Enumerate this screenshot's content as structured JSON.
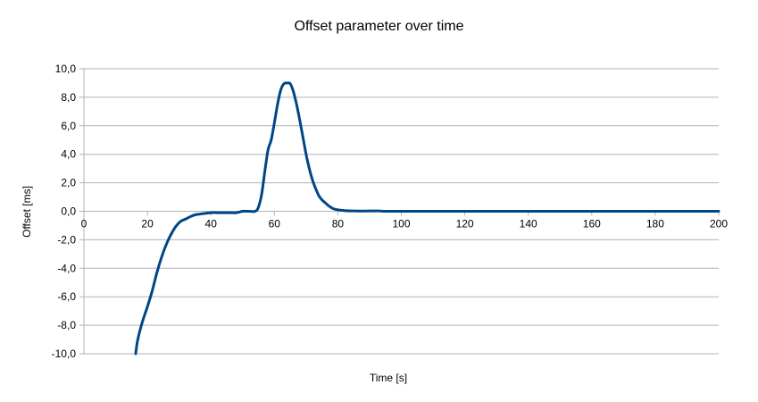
{
  "chart_data": {
    "type": "line",
    "title": "Offset parameter over time",
    "xlabel": "Time [s]",
    "ylabel": "Offset [ms]",
    "xlim": [
      0,
      200
    ],
    "ylim": [
      -10,
      10
    ],
    "x_ticks": [
      0,
      20,
      40,
      60,
      80,
      100,
      120,
      140,
      160,
      180,
      200
    ],
    "x_tick_labels": [
      "0",
      "20",
      "40",
      "60",
      "80",
      "100",
      "120",
      "140",
      "160",
      "180",
      "200"
    ],
    "y_ticks": [
      -10,
      -8,
      -6,
      -4,
      -2,
      0,
      2,
      4,
      6,
      8,
      10
    ],
    "y_tick_labels": [
      "-10,0",
      "-8,0",
      "-6,0",
      "-4,0",
      "-2,0",
      "0,0",
      "2,0",
      "4,0",
      "6,0",
      "8,0",
      "10,0"
    ],
    "grid": true,
    "legend": "none",
    "series": [
      {
        "color": "#004586",
        "x": [
          16.3,
          16.8,
          17.5,
          18.5,
          20,
          21.5,
          23,
          24.5,
          26,
          27.5,
          29,
          30.5,
          32,
          33.5,
          35,
          36.5,
          38,
          40,
          42,
          44,
          46,
          48,
          50,
          52,
          54,
          55,
          56,
          57,
          58,
          59,
          60,
          61,
          62,
          63,
          64,
          65,
          66,
          67,
          68,
          69,
          70,
          71,
          72,
          73,
          74,
          75,
          76,
          77,
          78,
          79,
          80,
          82,
          85,
          90,
          93,
          95,
          100,
          150,
          200
        ],
        "y": [
          -10,
          -9.2,
          -8.5,
          -7.7,
          -6.7,
          -5.6,
          -4.3,
          -3.2,
          -2.3,
          -1.6,
          -1.05,
          -0.7,
          -0.55,
          -0.38,
          -0.25,
          -0.2,
          -0.15,
          -0.1,
          -0.1,
          -0.1,
          -0.1,
          -0.1,
          0,
          0,
          0,
          0.3,
          1.2,
          2.8,
          4.3,
          5.0,
          6.2,
          7.5,
          8.5,
          8.95,
          9.0,
          8.95,
          8.4,
          7.5,
          6.4,
          5.2,
          4.0,
          3.0,
          2.2,
          1.6,
          1.1,
          0.8,
          0.6,
          0.4,
          0.25,
          0.15,
          0.1,
          0.05,
          0.02,
          0.02,
          0.02,
          0,
          0,
          0,
          0
        ]
      }
    ]
  }
}
